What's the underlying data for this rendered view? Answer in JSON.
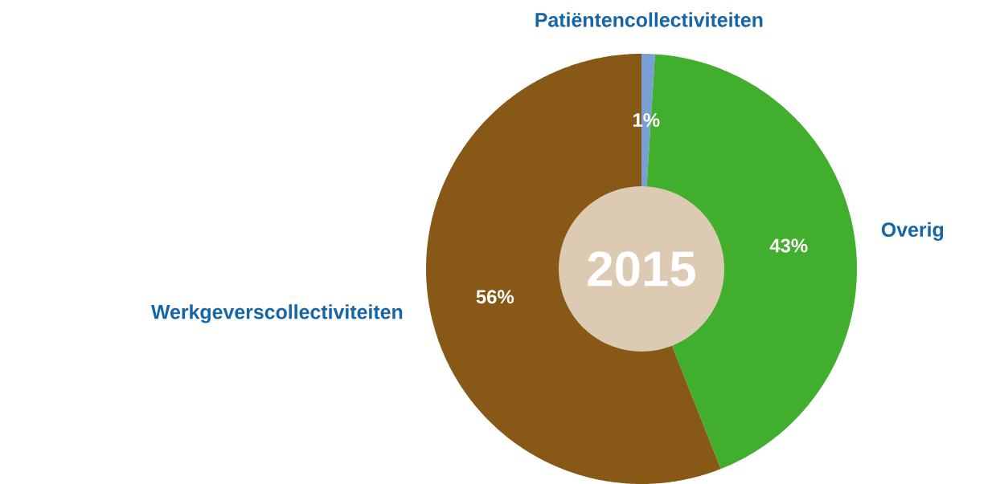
{
  "chart_data": {
    "type": "donut",
    "title": "2015",
    "categories": [
      "Patiëntencollectiviteiten",
      "Overig",
      "Werkgeverscollectiviteiten"
    ],
    "values": [
      1,
      43,
      56
    ],
    "colors": [
      "#7a9fd4",
      "#41ae2e",
      "#875816"
    ],
    "value_labels": [
      "1%",
      "43%",
      "56%"
    ]
  }
}
